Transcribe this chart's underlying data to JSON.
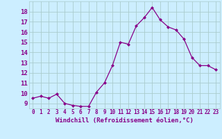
{
  "x": [
    0,
    1,
    2,
    3,
    4,
    5,
    6,
    7,
    8,
    9,
    10,
    11,
    12,
    13,
    14,
    15,
    16,
    17,
    18,
    19,
    20,
    21,
    22,
    23
  ],
  "y": [
    9.5,
    9.7,
    9.5,
    9.9,
    9.0,
    8.8,
    8.7,
    8.7,
    10.1,
    11.0,
    12.7,
    15.0,
    14.8,
    16.6,
    17.4,
    18.4,
    17.2,
    16.5,
    16.2,
    15.3,
    13.5,
    12.7,
    12.7,
    12.3
  ],
  "xlabel": "Windchill (Refroidissement éolien,°C)",
  "ylim": [
    8.5,
    19.0
  ],
  "xlim": [
    -0.5,
    23.5
  ],
  "yticks": [
    9,
    10,
    11,
    12,
    13,
    14,
    15,
    16,
    17,
    18
  ],
  "xtick_labels": [
    "0",
    "1",
    "2",
    "3",
    "4",
    "5",
    "6",
    "7",
    "8",
    "9",
    "10",
    "11",
    "12",
    "13",
    "14",
    "15",
    "16",
    "17",
    "18",
    "19",
    "20",
    "21",
    "22",
    "23"
  ],
  "line_color": "#880088",
  "marker_color": "#880088",
  "bg_color": "#cceeff",
  "grid_color": "#aacccc",
  "font_color": "#880088",
  "xlabel_fontsize": 6.5,
  "ytick_fontsize": 6.5,
  "xtick_fontsize": 5.5
}
